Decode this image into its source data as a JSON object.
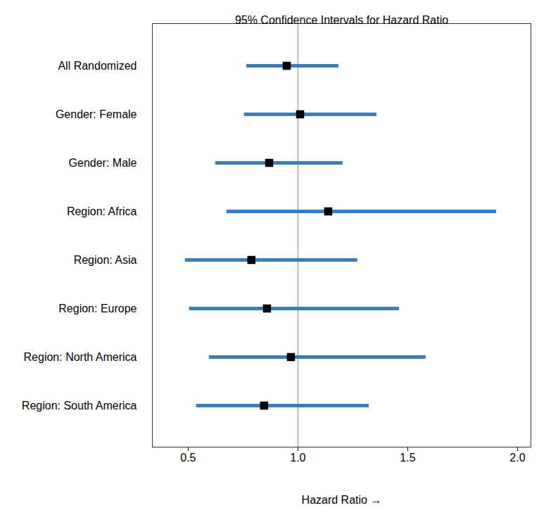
{
  "chart_data": {
    "type": "forest",
    "title": "95% Confidence Intervals for Hazard Ratio",
    "x_label": "Hazard Ratio",
    "categories": [
      "All Randomized",
      "Gender: Female",
      "Gender: Male",
      "Region: Africa",
      "Region: Asia",
      "Region: Europe",
      "Region: North America",
      "Region: South America"
    ],
    "values": [
      0.949,
      1.01,
      0.869,
      1.138,
      0.788,
      0.859,
      0.968,
      0.846
    ],
    "lower": [
      0.766,
      0.756,
      0.625,
      0.676,
      0.487,
      0.506,
      0.596,
      0.538
    ],
    "upper": [
      1.186,
      1.359,
      1.205,
      1.904,
      1.272,
      1.462,
      1.583,
      1.324
    ],
    "reference_line": 1,
    "color": "#3a7dbb",
    "marker": "square",
    "xlim": [
      0.337,
      2.061
    ],
    "xticks": [
      0.5,
      {
        "value": 1,
        "label": "1.0"
      },
      1.5,
      {
        "value": 2,
        "label": "2.0"
      }
    ],
    "orientation": "horizontal"
  }
}
